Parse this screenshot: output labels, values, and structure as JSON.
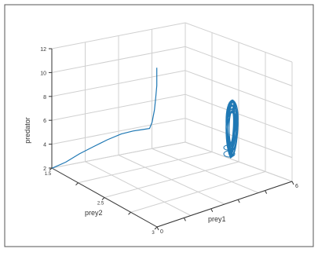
{
  "colors": {
    "background": "#ffffff",
    "frame": "#555555",
    "grid": "#d0d0d0",
    "axis": "#333333",
    "series": "#1f78b4"
  },
  "chart_data": {
    "type": "line",
    "projection": "3d",
    "xlabel": "prey1",
    "ylabel": "prey2",
    "zlabel": "predator",
    "zlim": [
      2,
      12
    ],
    "z_ticks": [
      "2",
      "4",
      "6",
      "8",
      "10",
      "12"
    ],
    "x_ticks": [
      "0",
      "",
      "",
      "",
      "",
      "6"
    ],
    "y_ticks": [
      "1.5",
      "",
      "2.5",
      "",
      "3"
    ],
    "grid": true,
    "series": [
      {
        "values_description": "",
        "x": [
          0,
          0.6,
          1.2,
          1.8,
          2.4,
          3.0,
          3.5,
          3.9,
          4.2,
          4.3,
          4.4,
          4.45,
          4.5,
          4.5,
          4.5
        ],
        "y": [
          1.1,
          1.2,
          1.35,
          1.55,
          1.8,
          2.05,
          2.3,
          2.5,
          2.65,
          2.75,
          2.8,
          2.85,
          2.85,
          2.85,
          2.85
        ],
        "z": [
          2,
          2.3,
          2.8,
          3.2,
          3.6,
          3.9,
          4.0,
          4.0,
          4.0,
          4.5,
          5.5,
          6.5,
          7.5,
          8.5,
          9.0
        ]
      }
    ]
  }
}
